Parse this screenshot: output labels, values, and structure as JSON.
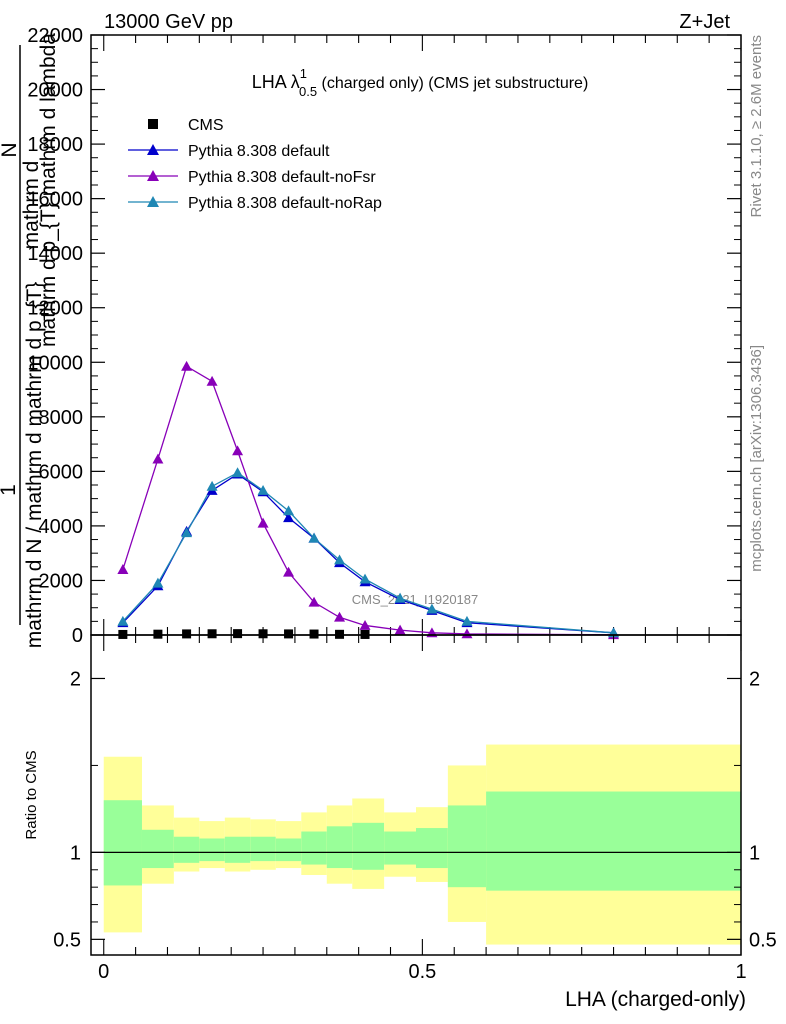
{
  "header": {
    "left": "13000 GeV pp",
    "right": "Z+Jet"
  },
  "plot_title": {
    "main": "LHA λ",
    "superscript": "1",
    "subscript": "0.5",
    "rest": " (charged only) (CMS jet substructure)"
  },
  "side_labels": {
    "rivet": "Rivet 3.1.10, ≥ 2.6M events",
    "mcplots": "mcplots.cern.ch [arXiv:1306.3436]"
  },
  "watermark": "CMS_2021_I1920187",
  "ylabel_main": {
    "numerator_1": "mathrm d",
    "numerator_2": "N",
    "denominator": "mathrm d p_{T} mathrm d lambda",
    "ratio_line_1": "1",
    "ratio_line_2": "mathrm d N / mathrm d mathrm d p_{T}"
  },
  "chart_data": [
    {
      "type": "line",
      "panel": "main",
      "title": "LHA λ^1_0.5 (charged only) (CMS jet substructure)",
      "xlim": [
        -0.02,
        1.0
      ],
      "ylim": [
        0,
        22000
      ],
      "y_ticks": [
        0,
        2000,
        4000,
        6000,
        8000,
        10000,
        12000,
        14000,
        16000,
        18000,
        20000,
        22000
      ],
      "y_tick_labels": [
        "0",
        "2000",
        "4000",
        "6000",
        "8000",
        "10000",
        "12000",
        "14000",
        "16000",
        "18000",
        "20000",
        "22000"
      ],
      "legend_placement": "top-left",
      "grid": false,
      "series": [
        {
          "name": "CMS",
          "marker": "square",
          "color": "#000000",
          "x": [
            0.03,
            0.085,
            0.13,
            0.17,
            0.21,
            0.25,
            0.29,
            0.33,
            0.37,
            0.41
          ],
          "values": [
            20,
            30,
            40,
            45,
            50,
            45,
            40,
            35,
            25,
            20
          ]
        },
        {
          "name": "Pythia 8.308 default",
          "marker": "triangle",
          "color": "#0000cc",
          "x": [
            0.03,
            0.085,
            0.13,
            0.17,
            0.21,
            0.25,
            0.29,
            0.33,
            0.37,
            0.41,
            0.465,
            0.515,
            0.57,
            0.8
          ],
          "values": [
            450,
            1800,
            3800,
            5300,
            5900,
            5250,
            4300,
            3550,
            2650,
            1950,
            1300,
            900,
            450,
            80
          ]
        },
        {
          "name": "Pythia 8.308 default-noFsr",
          "marker": "triangle",
          "color": "#8800b8",
          "x": [
            0.03,
            0.085,
            0.13,
            0.17,
            0.21,
            0.25,
            0.29,
            0.33,
            0.37,
            0.41,
            0.465,
            0.515,
            0.57,
            0.8
          ],
          "values": [
            2400,
            6450,
            9850,
            9300,
            6750,
            4100,
            2300,
            1200,
            650,
            350,
            180,
            80,
            40,
            10
          ]
        },
        {
          "name": "Pythia 8.308 default-noRap",
          "marker": "triangle",
          "color": "#1f87b4",
          "x": [
            0.03,
            0.085,
            0.13,
            0.17,
            0.21,
            0.25,
            0.29,
            0.33,
            0.37,
            0.41,
            0.465,
            0.515,
            0.57,
            0.8
          ],
          "values": [
            500,
            1900,
            3750,
            5450,
            5950,
            5300,
            4550,
            3550,
            2750,
            2050,
            1350,
            950,
            500,
            80
          ]
        }
      ]
    },
    {
      "type": "area",
      "panel": "ratio",
      "ylabel": "Ratio to CMS",
      "xlabel": "LHA (charged-only)",
      "xlim": [
        -0.02,
        1.0
      ],
      "ylim": [
        0.41,
        2.25
      ],
      "x_ticks": [
        0,
        0.5,
        1
      ],
      "x_tick_labels": [
        "0",
        "0.5",
        "1"
      ],
      "y_ticks": [
        0.5,
        1,
        2
      ],
      "y_tick_labels": [
        "0.5",
        "1",
        "2"
      ],
      "reference_line": 1,
      "bins": [
        0,
        0.06,
        0.11,
        0.15,
        0.19,
        0.23,
        0.27,
        0.31,
        0.35,
        0.39,
        0.44,
        0.49,
        0.54,
        0.6,
        1.0
      ],
      "yellow_band": {
        "color": "#ffff99",
        "lower": [
          0.54,
          0.82,
          0.89,
          0.91,
          0.89,
          0.9,
          0.91,
          0.87,
          0.82,
          0.79,
          0.86,
          0.83,
          0.6,
          0.47
        ],
        "upper": [
          1.55,
          1.27,
          1.2,
          1.18,
          1.2,
          1.19,
          1.18,
          1.23,
          1.27,
          1.31,
          1.23,
          1.26,
          1.5,
          1.62
        ]
      },
      "green_band": {
        "color": "#99ff99",
        "lower": [
          0.81,
          0.91,
          0.94,
          0.95,
          0.94,
          0.95,
          0.95,
          0.93,
          0.91,
          0.9,
          0.93,
          0.91,
          0.8,
          0.78
        ],
        "upper": [
          1.3,
          1.13,
          1.09,
          1.08,
          1.09,
          1.09,
          1.08,
          1.12,
          1.15,
          1.17,
          1.12,
          1.14,
          1.27,
          1.35
        ]
      }
    }
  ]
}
